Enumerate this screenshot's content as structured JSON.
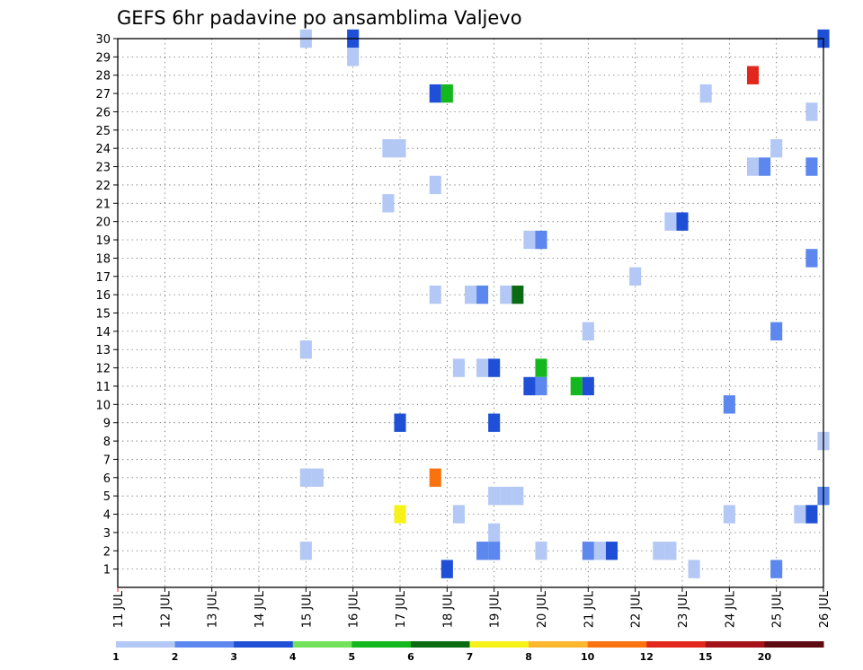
{
  "chart_data": {
    "type": "heatmap",
    "title": "GEFS 6hr padavine po ansamblima Valjevo",
    "xlabel": "",
    "ylabel": "",
    "x_ticks": [
      "11 JUL",
      "12 JUL",
      "13 JUL",
      "14 JUL",
      "15 JUL",
      "16 JUL",
      "17 JUL",
      "18 JUL",
      "19 JUL",
      "20 JUL",
      "21 JUL",
      "22 JUL",
      "23 JUL",
      "24 JUL",
      "25 JUL",
      "26 JUL"
    ],
    "xlim": [
      11,
      26
    ],
    "ylim": [
      0,
      30
    ],
    "y_ticks": [
      1,
      2,
      3,
      4,
      5,
      6,
      7,
      8,
      9,
      10,
      11,
      12,
      13,
      14,
      15,
      16,
      17,
      18,
      19,
      20,
      21,
      22,
      23,
      24,
      25,
      26,
      27,
      28,
      29,
      30
    ],
    "grid": true,
    "legend": {
      "placement": "bottom",
      "labels": [
        "1",
        "2",
        "3",
        "4",
        "5",
        "6",
        "7",
        "8",
        "10",
        "12",
        "15",
        "20"
      ],
      "colors": [
        "#b4c8f5",
        "#5b87ee",
        "#1e4fd6",
        "#73e25a",
        "#13b81e",
        "#0a6b12",
        "#f6f219",
        "#fcb72f",
        "#f9720f",
        "#e2281c",
        "#a5121a",
        "#5e0a12"
      ]
    },
    "cells": [
      {
        "member": 30,
        "x": 15.0,
        "value": 1
      },
      {
        "member": 30,
        "x": 16.0,
        "value": 3
      },
      {
        "member": 30,
        "x": 26.0,
        "value": 3
      },
      {
        "member": 29,
        "x": 16.0,
        "value": 1
      },
      {
        "member": 28,
        "x": 24.5,
        "value": 12
      },
      {
        "member": 27,
        "x": 17.75,
        "value": 3
      },
      {
        "member": 27,
        "x": 18.0,
        "value": 5
      },
      {
        "member": 27,
        "x": 23.5,
        "value": 1
      },
      {
        "member": 26,
        "x": 25.75,
        "value": 1
      },
      {
        "member": 24,
        "x": 16.75,
        "value": 1
      },
      {
        "member": 24,
        "x": 17.0,
        "value": 1
      },
      {
        "member": 24,
        "x": 25.0,
        "value": 1
      },
      {
        "member": 23,
        "x": 24.5,
        "value": 1
      },
      {
        "member": 23,
        "x": 24.75,
        "value": 2
      },
      {
        "member": 23,
        "x": 25.75,
        "value": 2
      },
      {
        "member": 22,
        "x": 17.75,
        "value": 1
      },
      {
        "member": 21,
        "x": 16.75,
        "value": 1
      },
      {
        "member": 20,
        "x": 22.75,
        "value": 1
      },
      {
        "member": 20,
        "x": 23.0,
        "value": 3
      },
      {
        "member": 19,
        "x": 19.75,
        "value": 1
      },
      {
        "member": 19,
        "x": 20.0,
        "value": 2
      },
      {
        "member": 18,
        "x": 25.75,
        "value": 2
      },
      {
        "member": 17,
        "x": 22.0,
        "value": 1
      },
      {
        "member": 16,
        "x": 17.75,
        "value": 1
      },
      {
        "member": 16,
        "x": 18.5,
        "value": 1
      },
      {
        "member": 16,
        "x": 18.75,
        "value": 2
      },
      {
        "member": 16,
        "x": 19.25,
        "value": 1
      },
      {
        "member": 16,
        "x": 19.5,
        "value": 6
      },
      {
        "member": 14,
        "x": 21.0,
        "value": 1
      },
      {
        "member": 14,
        "x": 25.0,
        "value": 2
      },
      {
        "member": 13,
        "x": 15.0,
        "value": 1
      },
      {
        "member": 12,
        "x": 18.25,
        "value": 1
      },
      {
        "member": 12,
        "x": 18.75,
        "value": 1
      },
      {
        "member": 12,
        "x": 19.0,
        "value": 3
      },
      {
        "member": 12,
        "x": 20.0,
        "value": 5
      },
      {
        "member": 11,
        "x": 19.75,
        "value": 3
      },
      {
        "member": 11,
        "x": 20.0,
        "value": 2
      },
      {
        "member": 11,
        "x": 20.75,
        "value": 5
      },
      {
        "member": 11,
        "x": 21.0,
        "value": 3
      },
      {
        "member": 10,
        "x": 24.0,
        "value": 2
      },
      {
        "member": 9,
        "x": 17.0,
        "value": 3
      },
      {
        "member": 9,
        "x": 19.0,
        "value": 3
      },
      {
        "member": 8,
        "x": 26.0,
        "value": 1
      },
      {
        "member": 6,
        "x": 15.0,
        "value": 1
      },
      {
        "member": 6,
        "x": 15.25,
        "value": 1
      },
      {
        "member": 6,
        "x": 17.75,
        "value": 10
      },
      {
        "member": 5,
        "x": 19.0,
        "value": 1
      },
      {
        "member": 5,
        "x": 19.25,
        "value": 1
      },
      {
        "member": 5,
        "x": 19.5,
        "value": 1
      },
      {
        "member": 5,
        "x": 26.0,
        "value": 2
      },
      {
        "member": 4,
        "x": 17.0,
        "value": 7
      },
      {
        "member": 4,
        "x": 18.25,
        "value": 1
      },
      {
        "member": 4,
        "x": 24.0,
        "value": 1
      },
      {
        "member": 4,
        "x": 25.5,
        "value": 1
      },
      {
        "member": 4,
        "x": 25.75,
        "value": 3
      },
      {
        "member": 3,
        "x": 19.0,
        "value": 1
      },
      {
        "member": 2,
        "x": 15.0,
        "value": 1
      },
      {
        "member": 2,
        "x": 18.75,
        "value": 2
      },
      {
        "member": 2,
        "x": 19.0,
        "value": 2
      },
      {
        "member": 2,
        "x": 20.0,
        "value": 1
      },
      {
        "member": 2,
        "x": 21.0,
        "value": 2
      },
      {
        "member": 2,
        "x": 21.25,
        "value": 1
      },
      {
        "member": 2,
        "x": 21.5,
        "value": 3
      },
      {
        "member": 2,
        "x": 22.5,
        "value": 1
      },
      {
        "member": 2,
        "x": 22.75,
        "value": 1
      },
      {
        "member": 1,
        "x": 18.0,
        "value": 3
      },
      {
        "member": 1,
        "x": 23.25,
        "value": 1
      },
      {
        "member": 1,
        "x": 25.0,
        "value": 2
      }
    ]
  }
}
